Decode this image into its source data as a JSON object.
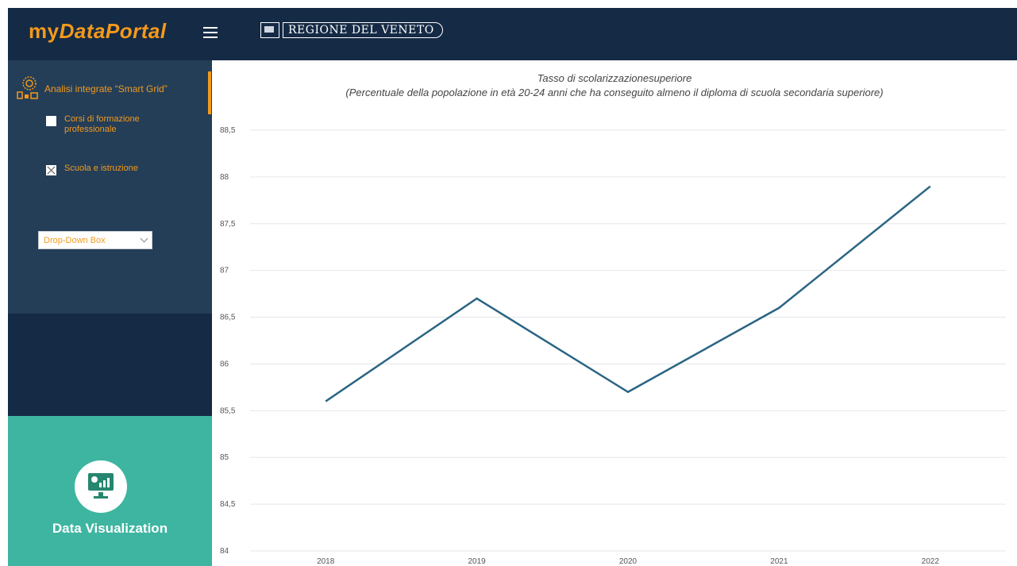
{
  "header": {
    "logo_my": "my",
    "logo_rest": "DataPortal",
    "brand": "REGIONE DEL VENETO",
    "accent_color": "#f39a1b",
    "bg_color": "#152a45"
  },
  "sidebar": {
    "section_label": "Analisi integrate “Smart Grid”",
    "checkboxes": [
      {
        "label": "Corsi di formazione professionale",
        "checked": false
      },
      {
        "label": "Scuola e istruzione",
        "checked": true
      }
    ],
    "dropdown_label": "Drop-Down Box",
    "data_viz_label": "Data Visualization"
  },
  "chart": {
    "title_line1": "Tasso di scolarizzazionesuperiore",
    "title_line2": "(Percentuale della popolazione in età 20-24 anni che ha conseguito almeno il diploma di scuola secondaria superiore)"
  },
  "chart_data": {
    "type": "line",
    "categories": [
      "2018",
      "2019",
      "2020",
      "2021",
      "2022"
    ],
    "values": [
      85.6,
      86.7,
      85.7,
      86.6,
      87.9
    ],
    "ylim": [
      84,
      88.5
    ],
    "yticks": [
      "84",
      "84,5",
      "85",
      "85,5",
      "86",
      "86,5",
      "87",
      "87,5",
      "88",
      "88,5"
    ],
    "line_color": "#2b6584",
    "grid": true
  }
}
